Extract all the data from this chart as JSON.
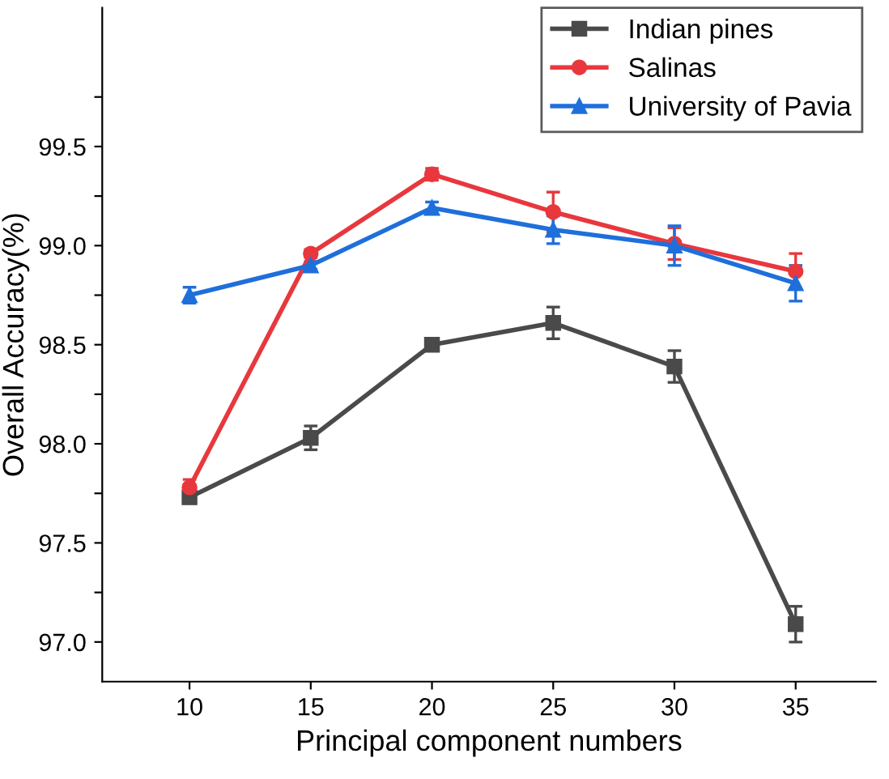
{
  "chart_data": {
    "type": "line",
    "xlabel": "Principal component numbers",
    "ylabel": "Overall Accuracy(%)",
    "x": [
      10,
      15,
      20,
      25,
      30,
      35
    ],
    "xlim": [
      6.4,
      38.3
    ],
    "xticks": [
      10,
      15,
      20,
      25,
      30,
      35
    ],
    "ylim": [
      96.8,
      100.2
    ],
    "yticks": [
      {
        "value": 97.0,
        "label": "97.0"
      },
      {
        "value": 97.25,
        "label": null
      },
      {
        "value": 97.5,
        "label": "97.5"
      },
      {
        "value": 97.75,
        "label": null
      },
      {
        "value": 98.0,
        "label": "98.0"
      },
      {
        "value": 98.25,
        "label": null
      },
      {
        "value": 98.5,
        "label": "98.5"
      },
      {
        "value": 98.75,
        "label": null
      },
      {
        "value": 99.0,
        "label": "99.0"
      },
      {
        "value": 99.25,
        "label": null
      },
      {
        "value": 99.5,
        "label": "99.5"
      },
      {
        "value": 99.75,
        "label": null
      }
    ],
    "grid": false,
    "legend": "top right",
    "line_style": "solid",
    "series": [
      {
        "name": "Indian pines",
        "color": "#4a4a4a",
        "marker": "square",
        "values": [
          97.73,
          98.03,
          98.5,
          98.61,
          98.39,
          97.09
        ],
        "errors": [
          0.03,
          0.06,
          0.03,
          0.08,
          0.08,
          0.09
        ]
      },
      {
        "name": "Salinas",
        "color": "#e8383d",
        "marker": "circle",
        "values": [
          97.78,
          98.96,
          99.36,
          99.17,
          99.01,
          98.87
        ],
        "errors": [
          0.04,
          0.02,
          0.03,
          0.1,
          0.08,
          0.09
        ]
      },
      {
        "name": "University of Pavia",
        "color": "#1f6fdb",
        "marker": "triangle",
        "values": [
          98.75,
          98.9,
          99.19,
          99.08,
          99.0,
          98.81
        ],
        "errors": [
          0.04,
          0.02,
          0.03,
          0.07,
          0.1,
          0.09
        ]
      }
    ]
  }
}
